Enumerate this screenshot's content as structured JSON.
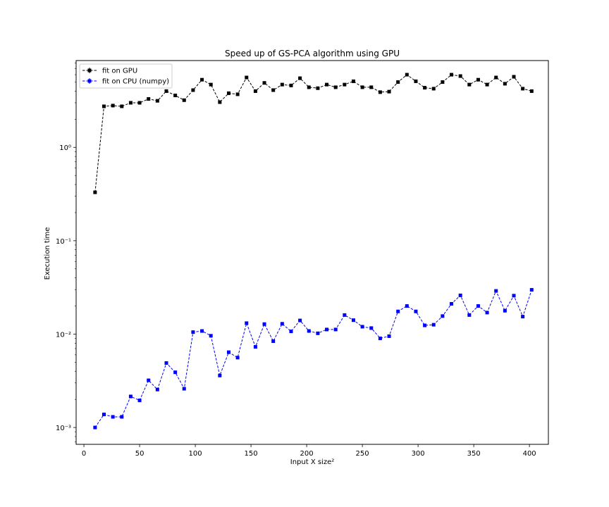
{
  "chart_data": {
    "type": "line",
    "title": "Speed up of GS-PCA algorithm using GPU",
    "xlabel": "Input X size²",
    "ylabel": "Execution time",
    "yscale": "log",
    "xlim": [
      -7,
      417
    ],
    "ylim": [
      0.00066,
      8.5
    ],
    "xticks": [
      0,
      50,
      100,
      150,
      200,
      250,
      300,
      350,
      400
    ],
    "xtick_labels": [
      "0",
      "50",
      "100",
      "150",
      "200",
      "250",
      "300",
      "350",
      "400"
    ],
    "yticks": [
      0.001,
      0.01,
      0.1,
      1
    ],
    "ytick_labels": [
      "10⁻³",
      "10⁻²",
      "10⁻¹",
      "10⁰"
    ],
    "grid": false,
    "legend_position": "top-left",
    "x": [
      10,
      18,
      26,
      34,
      42,
      50,
      58,
      66,
      74,
      82,
      90,
      98,
      106,
      114,
      122,
      130,
      138,
      146,
      154,
      162,
      170,
      178,
      186,
      194,
      202,
      210,
      218,
      226,
      234,
      242,
      250,
      258,
      266,
      274,
      282,
      290,
      298,
      306,
      314,
      322,
      330,
      338,
      346,
      354,
      362,
      370,
      378,
      386,
      394,
      402
    ],
    "series": [
      {
        "name": "fit on GPU",
        "color": "#000000",
        "marker": "square",
        "linestyle": "dashed",
        "values": [
          0.33,
          2.75,
          2.8,
          2.75,
          3.0,
          3.0,
          3.3,
          3.15,
          4.0,
          3.6,
          3.2,
          4.1,
          5.3,
          4.7,
          3.05,
          3.8,
          3.7,
          5.6,
          4.0,
          4.9,
          4.1,
          4.7,
          4.6,
          5.5,
          4.4,
          4.3,
          4.7,
          4.4,
          4.7,
          5.1,
          4.4,
          4.4,
          3.9,
          3.95,
          5.0,
          6.0,
          5.1,
          4.35,
          4.25,
          5.0,
          6.0,
          5.8,
          4.7,
          5.3,
          4.7,
          5.6,
          4.8,
          5.7,
          4.25,
          4.0
        ]
      },
      {
        "name": "fit on CPU (numpy)",
        "color": "#0000ff",
        "marker": "square",
        "linestyle": "dashed",
        "values": [
          0.001,
          0.00138,
          0.0013,
          0.0013,
          0.00215,
          0.00195,
          0.0032,
          0.00255,
          0.0049,
          0.0039,
          0.0026,
          0.0105,
          0.0108,
          0.0096,
          0.0036,
          0.0064,
          0.0056,
          0.0131,
          0.0073,
          0.0128,
          0.0084,
          0.0129,
          0.0107,
          0.014,
          0.0108,
          0.0102,
          0.0112,
          0.0112,
          0.016,
          0.0141,
          0.012,
          0.0116,
          0.009,
          0.0095,
          0.0175,
          0.02,
          0.0175,
          0.0124,
          0.0126,
          0.0156,
          0.0211,
          0.026,
          0.016,
          0.02,
          0.017,
          0.029,
          0.0178,
          0.0258,
          0.0154,
          0.0298
        ]
      }
    ]
  }
}
